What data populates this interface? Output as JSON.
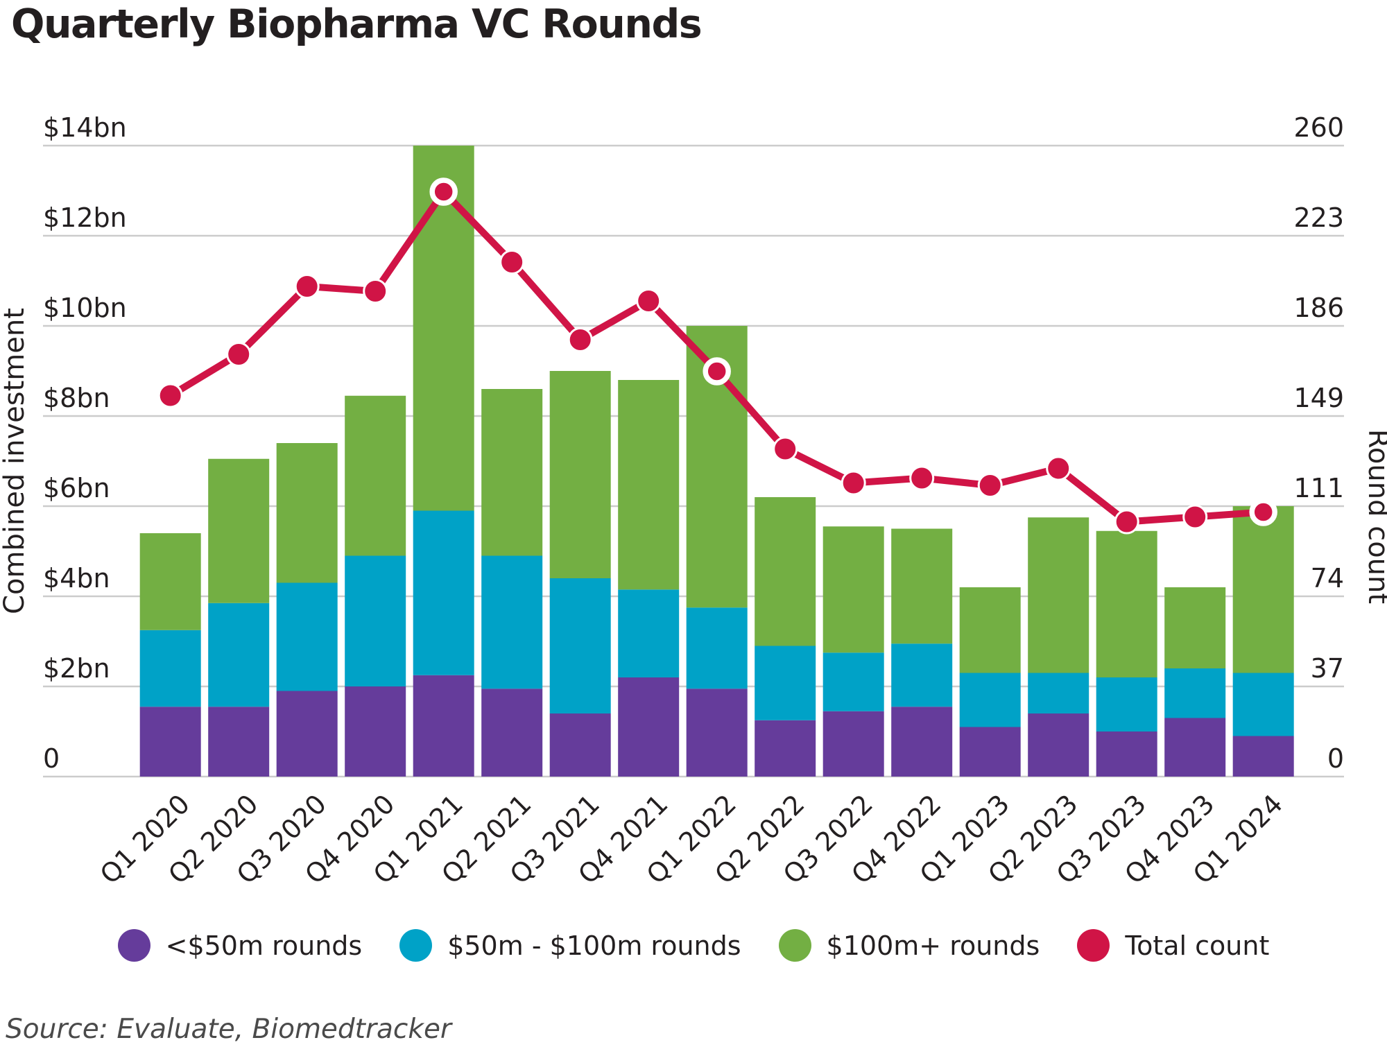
{
  "title": "Quarterly Biopharma VC Rounds",
  "source": "Source: Evaluate, Biomedtracker",
  "colors": {
    "purple": "#653c9b",
    "blue": "#00a2c7",
    "green": "#73af43",
    "red": "#d01446",
    "grid": "#cccccc",
    "text": "#231f20",
    "source_text": "#4a4a4a",
    "background": "#ffffff"
  },
  "chart_data": {
    "type": "bar",
    "subtype": "stacked-bars-with-line-overlay",
    "title": "Quarterly Biopharma VC Rounds",
    "categories": [
      "Q1 2020",
      "Q2 2020",
      "Q3 2020",
      "Q4 2020",
      "Q1 2021",
      "Q2 2021",
      "Q3 2021",
      "Q4 2021",
      "Q1 2022",
      "Q2 2022",
      "Q3 2022",
      "Q4 2022",
      "Q1 2023",
      "Q2 2023",
      "Q3 2023",
      "Q4 2023",
      "Q1 2024"
    ],
    "series": [
      {
        "name": "<$50m rounds",
        "color": "#653c9b",
        "values": [
          1.55,
          1.55,
          1.9,
          2.0,
          2.25,
          1.95,
          1.4,
          2.2,
          1.95,
          1.25,
          1.45,
          1.55,
          1.1,
          1.4,
          1.0,
          1.3,
          0.9
        ]
      },
      {
        "name": "$50m - $100m rounds",
        "color": "#00a2c7",
        "values": [
          1.7,
          2.3,
          2.4,
          2.9,
          3.65,
          2.95,
          3.0,
          1.95,
          1.8,
          1.65,
          1.3,
          1.4,
          1.2,
          0.9,
          1.2,
          1.1,
          1.4
        ]
      },
      {
        "name": "$100m+ rounds",
        "color": "#73af43",
        "values": [
          2.15,
          3.2,
          3.1,
          3.55,
          8.1,
          3.7,
          4.6,
          4.65,
          6.25,
          3.3,
          2.8,
          2.55,
          1.9,
          3.45,
          3.25,
          1.8,
          3.7
        ]
      }
    ],
    "bar_totals_bn": [
      5.4,
      7.05,
      7.4,
      8.45,
      14.0,
      8.6,
      9.0,
      8.8,
      10.0,
      6.2,
      5.55,
      5.5,
      4.2,
      5.75,
      5.45,
      4.2,
      6.0
    ],
    "line_series": {
      "name": "Total count",
      "color": "#d01446",
      "axis": "right",
      "values": [
        157,
        174,
        202,
        200,
        241,
        212,
        180,
        196,
        167,
        135,
        121,
        123,
        120,
        127,
        105,
        107,
        109
      ],
      "highlighted_indices": [
        4,
        8,
        16
      ]
    },
    "left_axis": {
      "title": "Combined investment",
      "tick_labels": [
        "$14bn",
        "$12bn",
        "$10bn",
        "$8bn",
        "$6bn",
        "$4bn",
        "$2bn",
        "0"
      ],
      "tick_values": [
        14,
        12,
        10,
        8,
        6,
        4,
        2,
        0
      ],
      "range": [
        0,
        14
      ]
    },
    "right_axis": {
      "title": "Round count",
      "tick_labels": [
        "260",
        "223",
        "186",
        "149",
        "111",
        "74",
        "37",
        "0"
      ],
      "tick_values": [
        260,
        223,
        186,
        149,
        111,
        74,
        37,
        0
      ],
      "range": [
        0,
        260
      ]
    },
    "grid": true,
    "legend_position": "bottom"
  }
}
